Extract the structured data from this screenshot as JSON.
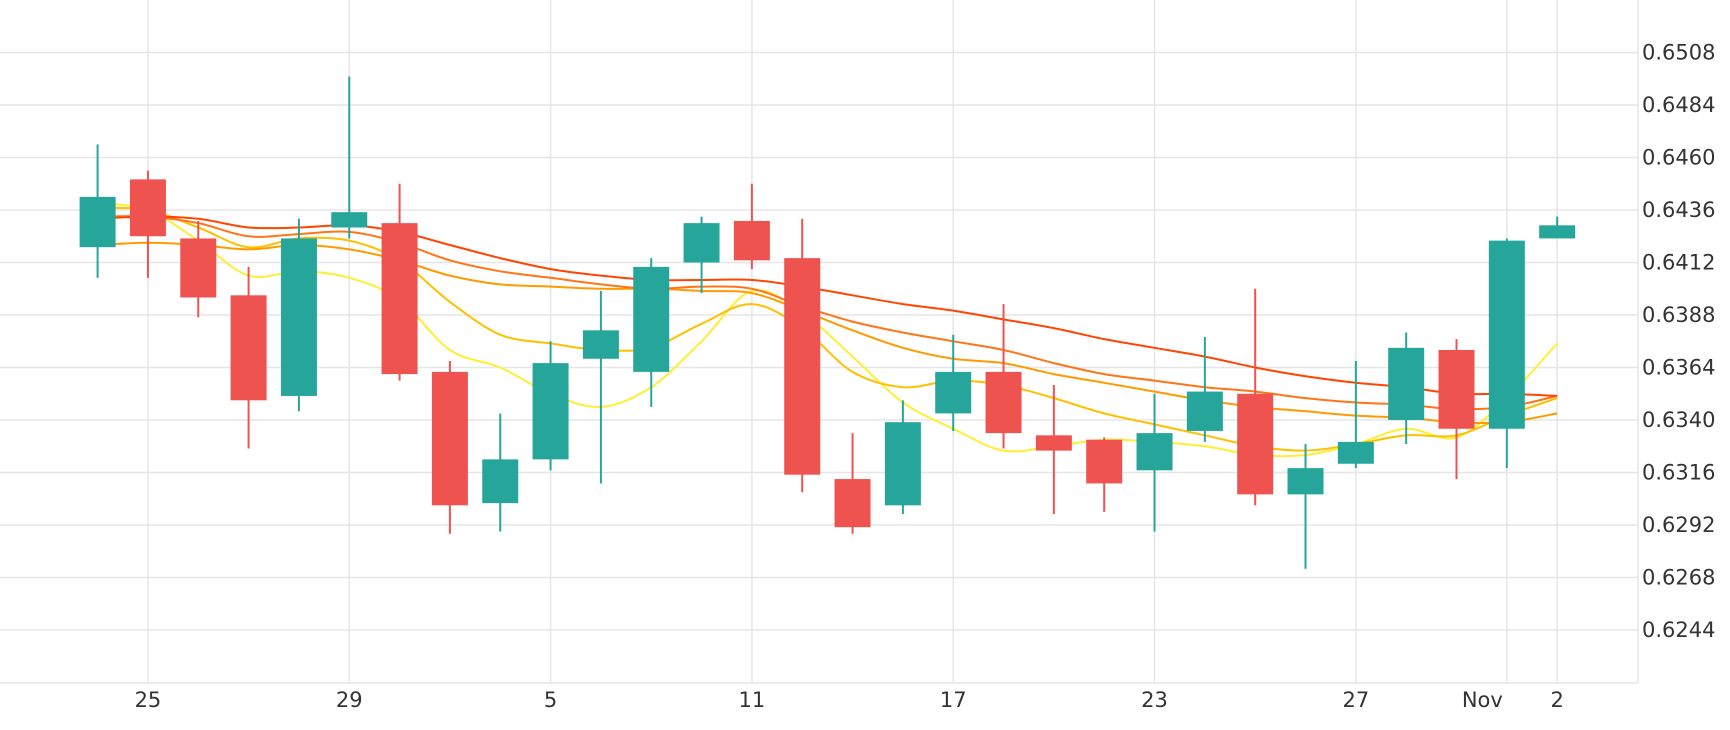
{
  "chart_data": {
    "type": "candlestick",
    "grid": true,
    "y_axis_position": "right",
    "ylim": [
      0.6222,
      0.6538
    ],
    "y_ticks": [
      "0.6244",
      "0.6268",
      "0.6292",
      "0.6316",
      "0.6340",
      "0.6364",
      "0.6388",
      "0.6412",
      "0.6436",
      "0.6460",
      "0.6484",
      "0.6508"
    ],
    "x_ticks": [
      {
        "index": 1,
        "label": "25"
      },
      {
        "index": 5,
        "label": "29"
      },
      {
        "index": 9,
        "label": "5"
      },
      {
        "index": 13,
        "label": "11"
      },
      {
        "index": 17,
        "label": "17"
      },
      {
        "index": 21,
        "label": "23"
      },
      {
        "index": 25,
        "label": "27"
      },
      {
        "index": 28,
        "label": "Nov"
      },
      {
        "index": 29,
        "label": "2"
      }
    ],
    "colors": {
      "up": "#26a69a",
      "down": "#ef5350",
      "grid": "#e6e6e6"
    },
    "candles": [
      {
        "o": 0.6419,
        "h": 0.6466,
        "l": 0.6405,
        "c": 0.6442
      },
      {
        "o": 0.645,
        "h": 0.6454,
        "l": 0.6405,
        "c": 0.6424
      },
      {
        "o": 0.6423,
        "h": 0.6431,
        "l": 0.6387,
        "c": 0.6396
      },
      {
        "o": 0.6397,
        "h": 0.641,
        "l": 0.6327,
        "c": 0.6349
      },
      {
        "o": 0.6351,
        "h": 0.6432,
        "l": 0.6344,
        "c": 0.6423
      },
      {
        "o": 0.6428,
        "h": 0.6497,
        "l": 0.6423,
        "c": 0.6435
      },
      {
        "o": 0.643,
        "h": 0.6448,
        "l": 0.6358,
        "c": 0.6361
      },
      {
        "o": 0.6362,
        "h": 0.6367,
        "l": 0.6288,
        "c": 0.6301
      },
      {
        "o": 0.6302,
        "h": 0.6343,
        "l": 0.6289,
        "c": 0.6322
      },
      {
        "o": 0.6322,
        "h": 0.6376,
        "l": 0.6317,
        "c": 0.6366
      },
      {
        "o": 0.6368,
        "h": 0.6399,
        "l": 0.6311,
        "c": 0.6381
      },
      {
        "o": 0.6362,
        "h": 0.6414,
        "l": 0.6346,
        "c": 0.641
      },
      {
        "o": 0.6412,
        "h": 0.6433,
        "l": 0.6398,
        "c": 0.643
      },
      {
        "o": 0.6431,
        "h": 0.6448,
        "l": 0.6409,
        "c": 0.6413
      },
      {
        "o": 0.6414,
        "h": 0.6432,
        "l": 0.6307,
        "c": 0.6315
      },
      {
        "o": 0.6313,
        "h": 0.6334,
        "l": 0.6288,
        "c": 0.6291
      },
      {
        "o": 0.6301,
        "h": 0.6349,
        "l": 0.6297,
        "c": 0.6339
      },
      {
        "o": 0.6343,
        "h": 0.6379,
        "l": 0.6335,
        "c": 0.6362
      },
      {
        "o": 0.6362,
        "h": 0.6393,
        "l": 0.6327,
        "c": 0.6334
      },
      {
        "o": 0.6333,
        "h": 0.6356,
        "l": 0.6297,
        "c": 0.6326
      },
      {
        "o": 0.6331,
        "h": 0.6332,
        "l": 0.6298,
        "c": 0.6311
      },
      {
        "o": 0.6317,
        "h": 0.6352,
        "l": 0.6289,
        "c": 0.6334
      },
      {
        "o": 0.6335,
        "h": 0.6378,
        "l": 0.633,
        "c": 0.6353
      },
      {
        "o": 0.6352,
        "h": 0.64,
        "l": 0.6301,
        "c": 0.6306
      },
      {
        "o": 0.6306,
        "h": 0.6329,
        "l": 0.6272,
        "c": 0.6318
      },
      {
        "o": 0.632,
        "h": 0.6367,
        "l": 0.6318,
        "c": 0.633
      },
      {
        "o": 0.634,
        "h": 0.638,
        "l": 0.6329,
        "c": 0.6373
      },
      {
        "o": 0.6372,
        "h": 0.6377,
        "l": 0.6313,
        "c": 0.6336
      },
      {
        "o": 0.6336,
        "h": 0.6423,
        "l": 0.6318,
        "c": 0.6422
      },
      {
        "o": 0.6423,
        "h": 0.6433,
        "l": 0.6423,
        "c": 0.6429
      }
    ],
    "moving_averages": [
      {
        "color": "#ffee33",
        "values": [
          0.6439,
          0.6436,
          0.6422,
          0.6406,
          0.6408,
          0.6405,
          0.6395,
          0.6372,
          0.6364,
          0.6352,
          0.6346,
          0.6355,
          0.6376,
          0.6399,
          0.6389,
          0.6369,
          0.6348,
          0.6336,
          0.6326,
          0.6328,
          0.6331,
          0.633,
          0.6328,
          0.6324,
          0.6324,
          0.6329,
          0.6336,
          0.6332,
          0.635,
          0.6375
        ]
      },
      {
        "color": "#ffc000",
        "values": [
          0.6437,
          0.6436,
          0.6428,
          0.6419,
          0.6423,
          0.6422,
          0.6413,
          0.6394,
          0.6379,
          0.6375,
          0.6372,
          0.6373,
          0.6384,
          0.6393,
          0.6382,
          0.6362,
          0.6355,
          0.6358,
          0.6356,
          0.635,
          0.6343,
          0.6338,
          0.6333,
          0.6328,
          0.6326,
          0.6329,
          0.6333,
          0.6333,
          0.6342,
          0.635
        ]
      },
      {
        "color": "#ff9a00",
        "values": [
          0.642,
          0.6421,
          0.642,
          0.6418,
          0.642,
          0.6418,
          0.6413,
          0.6406,
          0.6402,
          0.6401,
          0.64,
          0.64,
          0.6399,
          0.6398,
          0.639,
          0.6381,
          0.6373,
          0.6368,
          0.6366,
          0.6361,
          0.6357,
          0.6353,
          0.6349,
          0.6346,
          0.6344,
          0.6342,
          0.6341,
          0.6339,
          0.6339,
          0.6343
        ]
      },
      {
        "color": "#ff7518",
        "values": [
          0.6433,
          0.6433,
          0.643,
          0.6424,
          0.6425,
          0.6426,
          0.6421,
          0.6413,
          0.6408,
          0.6405,
          0.6402,
          0.64,
          0.6401,
          0.64,
          0.6392,
          0.6385,
          0.638,
          0.6376,
          0.6372,
          0.6366,
          0.6361,
          0.6358,
          0.6355,
          0.6353,
          0.635,
          0.6348,
          0.6347,
          0.6345,
          0.6346,
          0.6351
        ]
      },
      {
        "color": "#ff4500",
        "values": [
          0.6432,
          0.6433,
          0.6432,
          0.6428,
          0.6428,
          0.6429,
          0.6426,
          0.642,
          0.6414,
          0.6409,
          0.6406,
          0.6404,
          0.6404,
          0.6404,
          0.6401,
          0.6397,
          0.6393,
          0.639,
          0.6386,
          0.6382,
          0.6377,
          0.6373,
          0.6369,
          0.6364,
          0.636,
          0.6357,
          0.6355,
          0.6352,
          0.6352,
          0.6351
        ]
      }
    ]
  }
}
